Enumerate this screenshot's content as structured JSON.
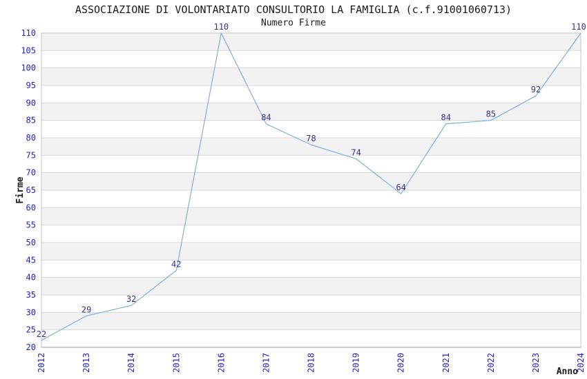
{
  "chart_data": {
    "type": "line",
    "title": "ASSOCIAZIONE DI VOLONTARIATO CONSULTORIO LA FAMIGLIA (c.f.91001060713)",
    "subtitle": "Numero Firme",
    "xlabel": "Anno",
    "ylabel": "Firme",
    "categories": [
      "2012",
      "2013",
      "2014",
      "2015",
      "2016",
      "2017",
      "2018",
      "2019",
      "2020",
      "2021",
      "2022",
      "2023",
      "2024"
    ],
    "values": [
      22,
      29,
      32,
      42,
      110,
      84,
      78,
      74,
      64,
      84,
      85,
      92,
      110
    ],
    "ylim": [
      20,
      110
    ],
    "ytick_step": 5,
    "grid": "horizontal-lines-with-alternating-bands",
    "legend": "none",
    "colors": {
      "line": "#7dafe1",
      "tick_label": "#2222d0",
      "data_label": "#333388",
      "band": "#f2f2f2",
      "grid_line": "#d9d9d9",
      "plot_border": "#c6c6c6",
      "axis_line": "#999999",
      "text": "#1a1a1a"
    }
  }
}
